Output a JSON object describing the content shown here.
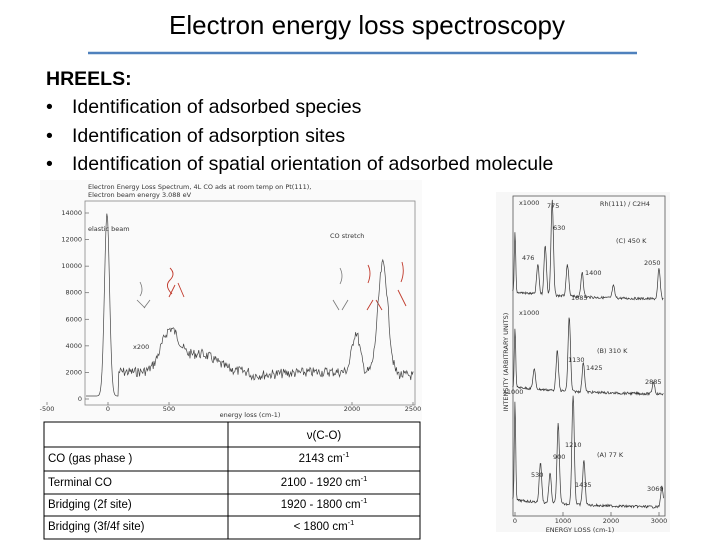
{
  "header": {
    "title": "Electron energy loss spectroscopy"
  },
  "intro": {
    "heading": "HREELS:",
    "bullets": [
      "Identification of adsorbed species",
      "Identification of adsorption sites",
      "Identification of spatial orientation of adsorbed molecule"
    ]
  },
  "left_figure": {
    "title_lines": [
      "Electron Energy Loss Spectrum, 4L CO ads at room temp on Pt(111),",
      "Electron beam energy 3.088 eV"
    ],
    "xlabel": "energy loss (cm-1)",
    "xticks": [
      -500,
      0,
      500,
      2000,
      2500
    ],
    "yticks": [
      0,
      2000,
      4000,
      6000,
      8000,
      10000,
      12000,
      14000
    ],
    "annotations": [
      "elastic beam",
      "x200",
      "CO stretch"
    ]
  },
  "right_figure": {
    "title": "Rh(111) / C2H4",
    "panels": [
      "(C) 450 K",
      "(B) 310 K",
      "(A) 77 K"
    ],
    "ylabel": "INTENSITY (ARBITRARY UNITS)",
    "xlabel": "ENERGY LOSS (cm-1)",
    "xticks": [
      0,
      1000,
      2000,
      3000
    ],
    "scale_labels": [
      "x1000",
      "x1000",
      "x1000"
    ],
    "peak_labels": [
      "775",
      "630",
      "476",
      "2050",
      "1400",
      "1085",
      "1130",
      "1425",
      "2885",
      "1210",
      "900",
      "530",
      "1435",
      "3060"
    ]
  },
  "table": {
    "header": "ν(C-O)",
    "rows": [
      [
        {
          "text": "CO (gas phase )"
        },
        {
          "text": "2143 cm",
          "sup": "-1"
        }
      ],
      [
        {
          "text": "Terminal CO"
        },
        {
          "text": "2100 - 1920 cm",
          "sup": "-1"
        }
      ],
      [
        {
          "text": "Bridging (2f site)"
        },
        {
          "text": "1920 - 1800 cm",
          "sup": "-1"
        }
      ],
      [
        {
          "text": "Bridging (3f/4f site)"
        },
        {
          "text": "< 1800 cm",
          "sup": "-1"
        }
      ]
    ]
  }
}
